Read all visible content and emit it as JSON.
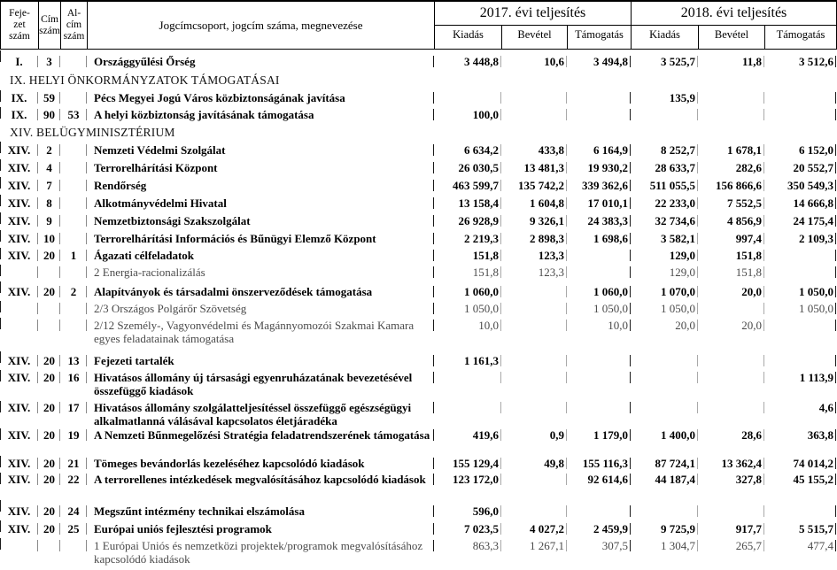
{
  "header": {
    "fejezet": "Feje-\nzet\nszám",
    "cim": "Cím\nszám",
    "alcim": "Al-\ncím\nszám",
    "megnevezes": "Jogcímcsoport, jogcím száma, megnevezése",
    "year2017": "2017. évi teljesítés",
    "year2018": "2018. évi teljesítés",
    "kiadas": "Kiadás",
    "bevetel": "Bevétel",
    "tamogatas": "Támogatás"
  },
  "rows": [
    {
      "type": "main",
      "fejezet": "I.",
      "cim": "3",
      "alcim": "",
      "name": "Országgyűlési Őrség",
      "values": [
        "3 448,8",
        "10,6",
        "3 494,8",
        "3 525,7",
        "11,8",
        "3 512,6"
      ]
    },
    {
      "type": "section",
      "name": "IX. HELYI ÖNKORMÁNYZATOK TÁMOGATÁSAI"
    },
    {
      "type": "main",
      "fejezet": "IX.",
      "cim": "59",
      "alcim": "",
      "name": "Pécs Megyei Jogú Város közbiztonságának javítása",
      "values": [
        "",
        "",
        "",
        "135,9",
        "",
        ""
      ]
    },
    {
      "type": "main",
      "fejezet": "IX.",
      "cim": "90",
      "alcim": "53",
      "name": "A helyi közbiztonság javításának támogatása",
      "values": [
        "100,0",
        "",
        "",
        "",
        "",
        ""
      ]
    },
    {
      "type": "section",
      "name": "XIV. BELÜGYMINISZTÉRIUM"
    },
    {
      "type": "main",
      "fejezet": "XIV.",
      "cim": "2",
      "alcim": "",
      "name": "Nemzeti Védelmi Szolgálat",
      "values": [
        "6 634,2",
        "433,8",
        "6 164,9",
        "8 252,7",
        "1 678,1",
        "6 152,0"
      ]
    },
    {
      "type": "main",
      "fejezet": "XIV.",
      "cim": "4",
      "alcim": "",
      "name": "Terrorelhárítási Központ",
      "values": [
        "26 030,5",
        "13 481,3",
        "19 930,2",
        "28 633,7",
        "282,6",
        "20 552,7"
      ]
    },
    {
      "type": "main",
      "fejezet": "XIV.",
      "cim": "7",
      "alcim": "",
      "name": "Rendőrség",
      "values": [
        "463 599,7",
        "135 742,2",
        "339 362,6",
        "511 055,5",
        "156 866,6",
        "350 549,3"
      ]
    },
    {
      "type": "main",
      "fejezet": "XIV.",
      "cim": "8",
      "alcim": "",
      "name": "Alkotmányvédelmi Hivatal",
      "values": [
        "13 158,4",
        "1 604,8",
        "17 010,1",
        "22 233,0",
        "7 552,5",
        "14 666,8"
      ]
    },
    {
      "type": "main",
      "fejezet": "XIV.",
      "cim": "9",
      "alcim": "",
      "name": "Nemzetbiztonsági Szakszolgálat",
      "values": [
        "26 928,9",
        "9 326,1",
        "24 383,3",
        "32 734,6",
        "4 856,9",
        "24 175,4"
      ]
    },
    {
      "type": "main",
      "fejezet": "XIV.",
      "cim": "10",
      "alcim": "",
      "name": "Terrorelhárítási Információs és Bűnügyi Elemző Központ",
      "values": [
        "2 219,3",
        "2 898,3",
        "1 698,6",
        "3 582,1",
        "997,4",
        "2 109,3"
      ]
    },
    {
      "type": "main",
      "fejezet": "XIV.",
      "cim": "20",
      "alcim": "1",
      "name": "Ágazati célfeladatok",
      "values": [
        "151,8",
        "123,3",
        "",
        "129,0",
        "151,8",
        ""
      ]
    },
    {
      "type": "sub",
      "fejezet": "",
      "cim": "",
      "alcim": "",
      "name": "2 Energia-racionalizálás",
      "values": [
        "151,8",
        "123,3",
        "",
        "129,0",
        "151,8",
        ""
      ]
    },
    {
      "type": "main",
      "fejezet": "XIV.",
      "cim": "20",
      "alcim": "2",
      "name": "Alapítványok és társadalmi önszerveződések támogatása",
      "values": [
        "1 060,0",
        "",
        "1 060,0",
        "1 070,0",
        "20,0",
        "1 050,0"
      ]
    },
    {
      "type": "sub",
      "fejezet": "",
      "cim": "",
      "alcim": "",
      "name": "2/3 Országos Polgárőr Szövetség",
      "values": [
        "1 050,0",
        "",
        "1 050,0",
        "1 050,0",
        "",
        "1 050,0"
      ]
    },
    {
      "type": "sub",
      "fejezet": "",
      "cim": "",
      "alcim": "",
      "name": "2/12 Személy-, Vagyonvédelmi és Magánnyomozói Szakmai Kamara egyes feladatainak támogatása",
      "values": [
        "10,0",
        "",
        "10,0",
        "20,0",
        "20,0",
        ""
      ]
    },
    {
      "type": "main",
      "fejezet": "XIV.",
      "cim": "20",
      "alcim": "13",
      "name": "Fejezeti tartalék",
      "values": [
        "1 161,3",
        "",
        "",
        "",
        "",
        ""
      ]
    },
    {
      "type": "main",
      "fejezet": "XIV.",
      "cim": "20",
      "alcim": "16",
      "name": "Hivatásos állomány új társasági egyenruházatának bevezetésével összefüggő kiadások",
      "values": [
        "",
        "",
        "",
        "",
        "",
        "1 113,9"
      ]
    },
    {
      "type": "main",
      "fejezet": "XIV.",
      "cim": "20",
      "alcim": "17",
      "name": "Hivatásos állomány szolgálatteljesítéssel összefüggő egészségügyi alkalmatlanná válásával kapcsolatos életjáradéka",
      "values": [
        "",
        "",
        "",
        "",
        "",
        "4,6"
      ]
    },
    {
      "type": "main",
      "fejezet": "XIV.",
      "cim": "20",
      "alcim": "19",
      "name": "A Nemzeti Bűnmegelőzési Stratégia feladatrendszerének támogatása",
      "values": [
        "419,6",
        "0,9",
        "1 179,0",
        "1 400,0",
        "28,6",
        "363,8"
      ]
    },
    {
      "type": "main",
      "fejezet": "XIV.",
      "cim": "20",
      "alcim": "21",
      "name": "Tömeges bevándorlás kezeléséhez kapcsolódó kiadások",
      "values": [
        "155 129,4",
        "49,8",
        "155 116,3",
        "87 724,1",
        "13 362,4",
        "74 014,2"
      ]
    },
    {
      "type": "main",
      "fejezet": "XIV.",
      "cim": "20",
      "alcim": "22",
      "name": "A terrorellenes intézkedések megvalósításához kapcsolódó kiadások",
      "values": [
        "123 172,0",
        "",
        "92 614,6",
        "44 187,4",
        "327,8",
        "45 155,2"
      ]
    },
    {
      "type": "main",
      "fejezet": "XIV.",
      "cim": "20",
      "alcim": "24",
      "name": "Megszűnt intézmény technikai elszámolása",
      "values": [
        "596,0",
        "",
        "",
        "",
        "",
        ""
      ]
    },
    {
      "type": "main",
      "fejezet": "XIV.",
      "cim": "20",
      "alcim": "25",
      "name": "Európai uniós fejlesztési programok",
      "values": [
        "7 023,5",
        "4 027,2",
        "2 459,9",
        "9 725,9",
        "917,7",
        "5 515,7"
      ]
    },
    {
      "type": "sub",
      "fejezet": "",
      "cim": "",
      "alcim": "",
      "name": "1 Európai Uniós és nemzetközi projektek/programok megvalósításához kapcsolódó kiadások",
      "values": [
        "863,3",
        "1 267,1",
        "307,5",
        "1 304,7",
        "265,7",
        "477,4"
      ]
    }
  ]
}
